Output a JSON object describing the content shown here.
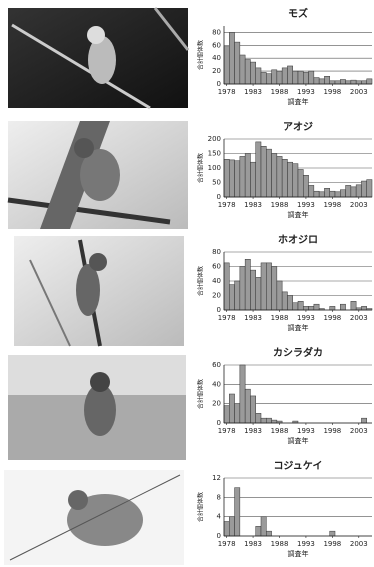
{
  "chart_data": [
    {
      "type": "bar",
      "title": "モズ",
      "ylabel": "合計個体数",
      "xlabel": "調査年",
      "x": [
        1978,
        1979,
        1980,
        1981,
        1982,
        1983,
        1984,
        1985,
        1986,
        1987,
        1988,
        1989,
        1990,
        1991,
        1992,
        1993,
        1994,
        1995,
        1996,
        1997,
        1998,
        1999,
        2000,
        2001,
        2002,
        2003,
        2004,
        2005
      ],
      "values": [
        58,
        80,
        65,
        45,
        38,
        34,
        25,
        18,
        16,
        22,
        20,
        25,
        28,
        20,
        20,
        18,
        20,
        10,
        8,
        12,
        5,
        5,
        7,
        5,
        6,
        5,
        5,
        8
      ],
      "xlim": [
        1977.5,
        2005.5
      ],
      "xticks": [
        1978,
        1983,
        1988,
        1993,
        1998,
        2003
      ],
      "ylim": [
        0,
        90
      ],
      "yticks": [
        0,
        20,
        40,
        60,
        80
      ],
      "grid": true,
      "color": "#9a9a9a"
    },
    {
      "type": "bar",
      "title": "アオジ",
      "ylabel": "合計個体数",
      "xlabel": "調査年",
      "x": [
        1978,
        1979,
        1980,
        1981,
        1982,
        1983,
        1984,
        1985,
        1986,
        1987,
        1988,
        1989,
        1990,
        1991,
        1992,
        1993,
        1994,
        1995,
        1996,
        1997,
        1998,
        1999,
        2000,
        2001,
        2002,
        2003,
        2004,
        2005
      ],
      "values": [
        130,
        128,
        125,
        140,
        150,
        120,
        190,
        175,
        165,
        150,
        140,
        130,
        120,
        115,
        95,
        75,
        40,
        20,
        18,
        30,
        20,
        18,
        25,
        40,
        35,
        42,
        55,
        60
      ],
      "xlim": [
        1977.5,
        2005.5
      ],
      "xticks": [
        1978,
        1983,
        1988,
        1993,
        1998,
        2003
      ],
      "ylim": [
        0,
        200
      ],
      "yticks": [
        0,
        50,
        100,
        150,
        200
      ],
      "grid": true,
      "color": "#9a9a9a"
    },
    {
      "type": "bar",
      "title": "ホオジロ",
      "ylabel": "合計個体数",
      "xlabel": "調査年",
      "x": [
        1978,
        1979,
        1980,
        1981,
        1982,
        1983,
        1984,
        1985,
        1986,
        1987,
        1988,
        1989,
        1990,
        1991,
        1992,
        1993,
        1994,
        1995,
        1996,
        1997,
        1998,
        1999,
        2000,
        2001,
        2002,
        2003,
        2004,
        2005
      ],
      "values": [
        65,
        35,
        40,
        60,
        70,
        55,
        45,
        65,
        65,
        60,
        40,
        25,
        20,
        10,
        12,
        5,
        5,
        8,
        2,
        0,
        5,
        0,
        8,
        0,
        12,
        3,
        5,
        2
      ],
      "xlim": [
        1977.5,
        2005.5
      ],
      "xticks": [
        1978,
        1983,
        1988,
        1993,
        1998,
        2003
      ],
      "ylim": [
        0,
        80
      ],
      "yticks": [
        0,
        20,
        40,
        60,
        80
      ],
      "grid": true,
      "color": "#9a9a9a"
    },
    {
      "type": "bar",
      "title": "カシラダカ",
      "ylabel": "合計個体数",
      "xlabel": "調査年",
      "x": [
        1978,
        1979,
        1980,
        1981,
        1982,
        1983,
        1984,
        1985,
        1986,
        1987,
        1988,
        1989,
        1990,
        1991,
        1992,
        1993,
        1994,
        1995,
        1996,
        1997,
        1998,
        1999,
        2000,
        2001,
        2002,
        2003,
        2004,
        2005
      ],
      "values": [
        18,
        30,
        20,
        60,
        35,
        28,
        10,
        5,
        5,
        3,
        2,
        0,
        0,
        2,
        0,
        0,
        0,
        0,
        0,
        0,
        0,
        0,
        0,
        0,
        0,
        0,
        5,
        0
      ],
      "xlim": [
        1977.5,
        2005.5
      ],
      "xticks": [
        1978,
        1983,
        1988,
        1993,
        1998,
        2003
      ],
      "ylim": [
        0,
        60
      ],
      "yticks": [
        0,
        20,
        40,
        60
      ],
      "grid": true,
      "color": "#9a9a9a"
    },
    {
      "type": "bar",
      "title": "コジュケイ",
      "ylabel": "合計個体数",
      "xlabel": "調査年",
      "x": [
        1978,
        1979,
        1980,
        1981,
        1982,
        1983,
        1984,
        1985,
        1986,
        1987,
        1988,
        1989,
        1990,
        1991,
        1992,
        1993,
        1994,
        1995,
        1996,
        1997,
        1998,
        1999,
        2000,
        2001,
        2002,
        2003,
        2004,
        2005
      ],
      "values": [
        3,
        4,
        10,
        0,
        0,
        0,
        2,
        4,
        1,
        0,
        0,
        0,
        0,
        0,
        0,
        0,
        0,
        0,
        0,
        0,
        1,
        0,
        0,
        0,
        0,
        0,
        0,
        0
      ],
      "xlim": [
        1977.5,
        2005.5
      ],
      "xticks": [
        1978,
        1983,
        1988,
        1993,
        1998,
        2003
      ],
      "ylim": [
        0,
        12
      ],
      "yticks": [
        0,
        4,
        8,
        12
      ],
      "grid": true,
      "color": "#9a9a9a"
    }
  ]
}
